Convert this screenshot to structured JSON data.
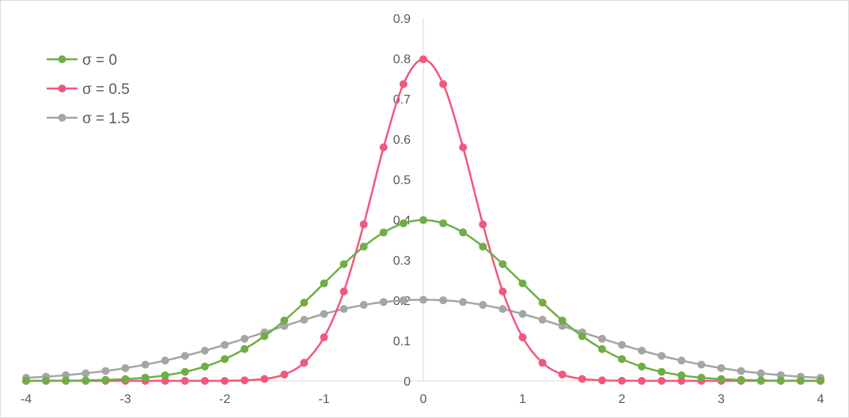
{
  "chart_data": {
    "type": "line",
    "title": "",
    "xlabel": "",
    "ylabel": "",
    "xlim": [
      -4,
      4
    ],
    "ylim": [
      0,
      0.9
    ],
    "x_ticks": [
      "-4",
      "-3",
      "-2",
      "-1",
      "0",
      "1",
      "2",
      "3",
      "4"
    ],
    "y_ticks": [
      "0",
      "0.1",
      "0.2",
      "0.3",
      "0.4",
      "0.5",
      "0.6",
      "0.7",
      "0.8",
      "0.9"
    ],
    "grid": false,
    "legend_position": "top-left",
    "x": [
      -4.0,
      -3.8,
      -3.6,
      -3.4,
      -3.2,
      -3.0,
      -2.8,
      -2.6,
      -2.4,
      -2.2,
      -2.0,
      -1.8,
      -1.6,
      -1.4,
      -1.2,
      -1.0,
      -0.8,
      -0.6,
      -0.4,
      -0.2,
      0.0,
      0.2,
      0.4,
      0.6,
      0.8,
      1.0,
      1.2,
      1.4,
      1.6,
      1.8,
      2.0,
      2.2,
      2.4,
      2.6,
      2.8,
      3.0,
      3.2,
      3.4,
      3.6,
      3.8,
      4.0
    ],
    "series": [
      {
        "name": "σ = 0",
        "color": "#70ad47",
        "values": [
          0.0001,
          0.0003,
          0.0006,
          0.0012,
          0.0024,
          0.0044,
          0.0079,
          0.0136,
          0.0224,
          0.0355,
          0.054,
          0.079,
          0.1109,
          0.1497,
          0.1942,
          0.242,
          0.2897,
          0.3332,
          0.3683,
          0.391,
          0.3989,
          0.391,
          0.3683,
          0.3332,
          0.2897,
          0.242,
          0.1942,
          0.1497,
          0.1109,
          0.079,
          0.054,
          0.0355,
          0.0224,
          0.0136,
          0.0079,
          0.0044,
          0.0024,
          0.0012,
          0.0006,
          0.0003,
          0.0001
        ]
      },
      {
        "name": "σ = 0.5",
        "color": "#f0587d",
        "values": [
          0,
          0,
          0,
          0,
          0,
          0,
          0,
          0,
          0,
          0,
          0.0001,
          0.0012,
          0.0047,
          0.0158,
          0.0448,
          0.108,
          0.2218,
          0.3883,
          0.5794,
          0.7365,
          0.7979,
          0.7365,
          0.5794,
          0.3883,
          0.2218,
          0.108,
          0.0448,
          0.0158,
          0.0047,
          0.0012,
          0.0003,
          0.0001,
          0,
          0,
          0,
          0,
          0,
          0,
          0,
          0,
          0
        ]
      },
      {
        "name": "σ = 1.5",
        "color": "#a5a5a5",
        "values": [
          0.0076,
          0.0104,
          0.0141,
          0.0188,
          0.0246,
          0.0317,
          0.0403,
          0.0504,
          0.062,
          0.075,
          0.0893,
          0.1045,
          0.1203,
          0.1362,
          0.1516,
          0.1659,
          0.1784,
          0.1884,
          0.1956,
          0.1999,
          0.2012,
          0.1999,
          0.1956,
          0.1884,
          0.1784,
          0.1659,
          0.1516,
          0.1362,
          0.1203,
          0.1045,
          0.0893,
          0.075,
          0.062,
          0.0504,
          0.0403,
          0.0317,
          0.0246,
          0.0188,
          0.0141,
          0.0104,
          0.0076
        ]
      }
    ]
  }
}
